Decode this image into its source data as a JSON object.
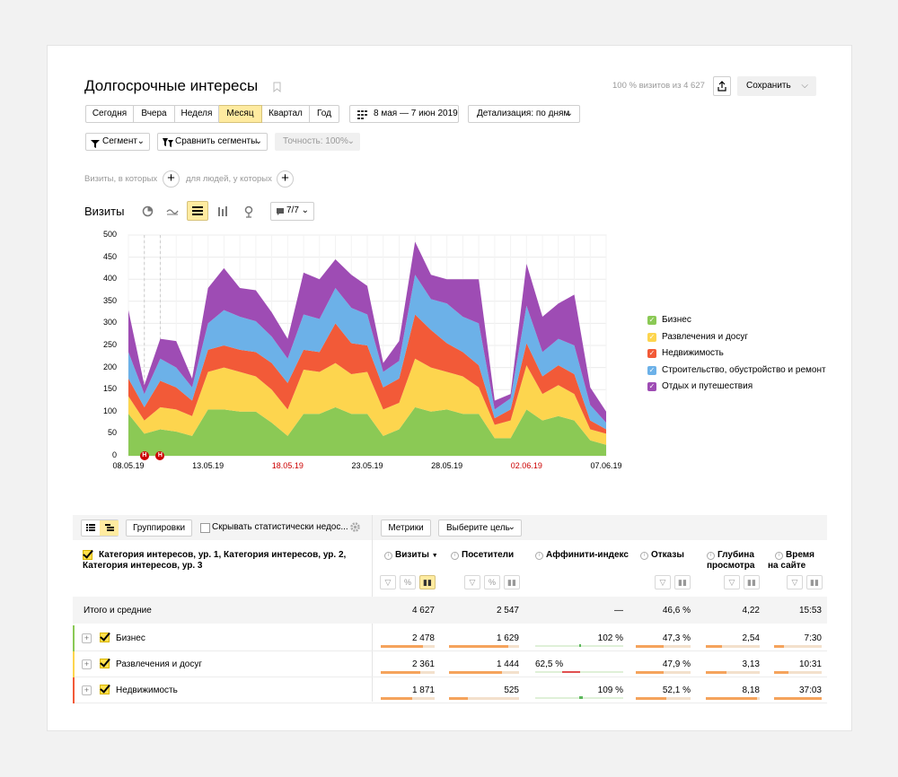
{
  "page": {
    "title": "Долгосрочные интересы",
    "coverage": "100 % визитов из 4 627",
    "save_label": "Сохранить"
  },
  "periods": [
    "Сегодня",
    "Вчера",
    "Неделя",
    "Месяц",
    "Квартал",
    "Год"
  ],
  "date_range": "8 мая — 7 июн 2019",
  "detail": "Детализация: по дням",
  "segment_label": "Сегмент",
  "compare_label": "Сравнить сегменты",
  "accuracy_label": "Точность: 100%",
  "filters": {
    "visits_text": "Визиты, в которых",
    "people_text": "для людей, у которых"
  },
  "chart_header": {
    "title": "Визиты",
    "series_count": "7/7"
  },
  "colors": {
    "business": "#8bc955",
    "entertainment": "#fdd54e",
    "realty": "#f25a38",
    "construction": "#6cb1e8",
    "travel": "#9e4cb4"
  },
  "chart_data": {
    "type": "area",
    "stacked": true,
    "title": "Визиты",
    "ylim": [
      0,
      500
    ],
    "yticks": [
      "0",
      "50",
      "100",
      "150",
      "200",
      "250",
      "300",
      "350",
      "400",
      "450",
      "500"
    ],
    "xticks": [
      {
        "label": "08.05.19",
        "index": 0,
        "holiday": false
      },
      {
        "label": "13.05.19",
        "index": 5,
        "holiday": false
      },
      {
        "label": "18.05.19",
        "index": 10,
        "holiday": true
      },
      {
        "label": "23.05.19",
        "index": 15,
        "holiday": false
      },
      {
        "label": "28.05.19",
        "index": 20,
        "holiday": false
      },
      {
        "label": "02.06.19",
        "index": 25,
        "holiday": true
      },
      {
        "label": "07.06.19",
        "index": 30,
        "holiday": false
      }
    ],
    "holiday_markers": [
      {
        "label": "Н",
        "index": 1
      },
      {
        "label": "Н",
        "index": 2
      }
    ],
    "series": [
      {
        "name": "Бизнес",
        "color": "#8bc955",
        "values": [
          95,
          50,
          60,
          55,
          45,
          105,
          105,
          100,
          100,
          75,
          45,
          95,
          95,
          110,
          95,
          95,
          45,
          60,
          110,
          100,
          105,
          95,
          95,
          40,
          40,
          105,
          80,
          90,
          80,
          35,
          25
        ]
      },
      {
        "name": "Развлечения и досуг",
        "color": "#fdd54e",
        "values": [
          40,
          30,
          50,
          50,
          45,
          85,
          95,
          90,
          80,
          75,
          60,
          100,
          95,
          100,
          90,
          95,
          60,
          60,
          110,
          100,
          85,
          85,
          60,
          30,
          40,
          100,
          60,
          70,
          60,
          25,
          25
        ]
      },
      {
        "name": "Недвижимость",
        "color": "#f25a38",
        "values": [
          40,
          30,
          60,
          50,
          35,
          50,
          50,
          50,
          55,
          60,
          60,
          45,
          45,
          90,
          70,
          60,
          50,
          55,
          100,
          85,
          65,
          55,
          50,
          15,
          25,
          50,
          40,
          45,
          45,
          20,
          10
        ]
      },
      {
        "name": "Строительство, обустройство и ремонт",
        "color": "#6cb1e8",
        "values": [
          60,
          30,
          50,
          45,
          30,
          60,
          80,
          75,
          70,
          60,
          55,
          80,
          75,
          80,
          80,
          70,
          35,
          40,
          90,
          70,
          90,
          80,
          95,
          20,
          25,
          85,
          55,
          60,
          65,
          35,
          15
        ]
      },
      {
        "name": "Отдых и путешествия",
        "color": "#9e4cb4",
        "values": [
          95,
          20,
          45,
          60,
          20,
          80,
          95,
          65,
          70,
          55,
          45,
          95,
          90,
          65,
          75,
          65,
          20,
          45,
          75,
          55,
          55,
          85,
          100,
          20,
          10,
          95,
          80,
          80,
          115,
          40,
          25
        ]
      }
    ]
  },
  "table": {
    "view_groups": "Группировки",
    "hide_label": "Скрывать статистически недос...",
    "metrics_label": "Метрики",
    "goal_label": "Выберите цель",
    "dim_header": "Категория интересов, ур. 1, Категория интересов, ур. 2, Категория интересов, ур. 3",
    "columns": [
      "Визиты",
      "Посетители",
      "Аффинити-индекс",
      "Отказы",
      "Глубина просмотра",
      "Время на сайте"
    ],
    "col_visits_sort": "▼",
    "col_depth_l1": "Глубина",
    "col_depth_l2": "просмотра",
    "col_time_l1": "Время",
    "col_time_l2": "на сайте",
    "total": {
      "label": "Итого и средние",
      "visits": "4 627",
      "visitors": "2 547",
      "affinity": "—",
      "bounce": "46,6 %",
      "depth": "4,22",
      "time": "15:53"
    },
    "rows": [
      {
        "label": "Бизнес",
        "visits": "2 478",
        "visitors": "1 629",
        "affinity": "102 %",
        "affinity_left": "",
        "bounce": "47,3 %",
        "depth": "2,54",
        "time": "7:30",
        "visits_frac": 0.78,
        "visitors_frac": 0.85,
        "bounce_frac": 0.5,
        "depth_frac": 0.3,
        "time_frac": 0.2,
        "strip": "#8bc955"
      },
      {
        "label": "Развлечения и досуг",
        "visits": "2 361",
        "visitors": "1 444",
        "affinity": "",
        "affinity_left": "62,5 %",
        "bounce": "47,9 %",
        "depth": "3,13",
        "time": "10:31",
        "visits_frac": 0.74,
        "visitors_frac": 0.75,
        "bounce_frac": 0.5,
        "depth_frac": 0.38,
        "time_frac": 0.3,
        "strip": "#fdd54e"
      },
      {
        "label": "Недвижимость",
        "visits": "1 871",
        "visitors": "525",
        "affinity": "109 %",
        "affinity_left": "",
        "bounce": "52,1 %",
        "depth": "8,18",
        "time": "37:03",
        "visits_frac": 0.59,
        "visitors_frac": 0.27,
        "bounce_frac": 0.55,
        "depth_frac": 0.95,
        "time_frac": 1.0,
        "strip": "#f25a38"
      }
    ]
  }
}
